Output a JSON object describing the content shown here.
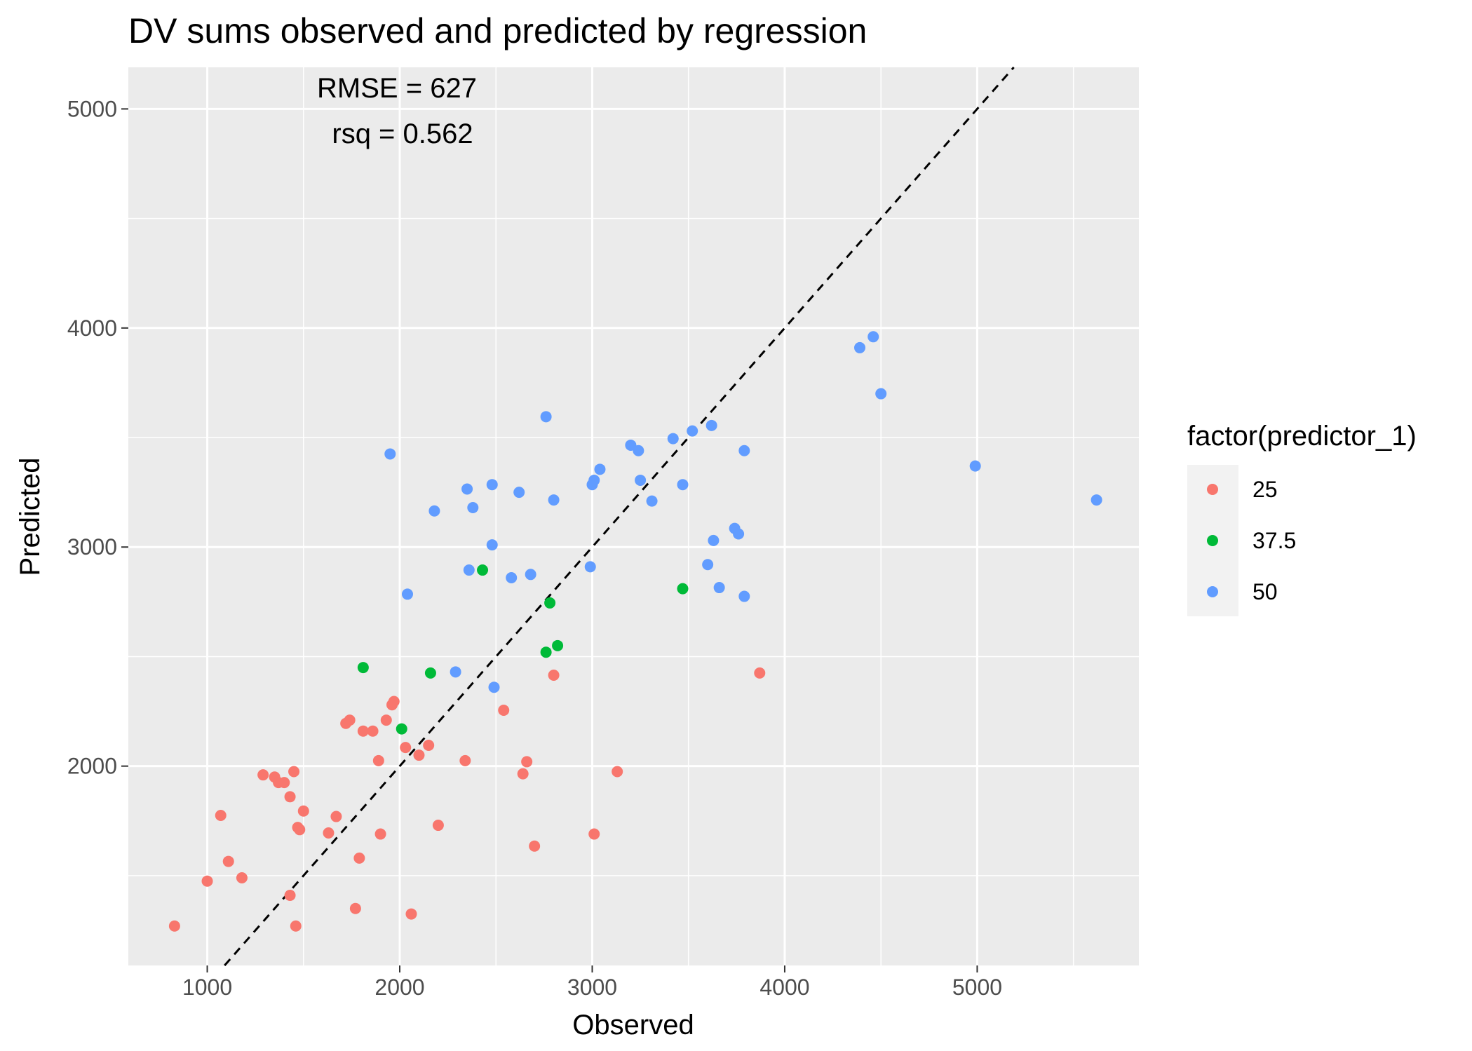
{
  "chart_data": {
    "type": "scatter",
    "title": "DV sums observed and predicted by regression",
    "xlabel": "Observed",
    "ylabel": "Predicted",
    "xlim": [
      590,
      5840
    ],
    "ylim": [
      1090,
      5190
    ],
    "x_ticks": [
      1000,
      2000,
      3000,
      4000,
      5000
    ],
    "y_ticks": [
      2000,
      3000,
      4000,
      5000
    ],
    "x_tick_labels": [
      "1000",
      "2000",
      "3000",
      "4000",
      "5000"
    ],
    "y_tick_labels": [
      "2000",
      "3000",
      "4000",
      "5000"
    ],
    "grid": true,
    "reference_line": {
      "style": "dashed",
      "slope": 1,
      "intercept": 0
    },
    "annotations": [
      "RMSE = 627",
      "rsq = 0.562"
    ],
    "legend": {
      "title": "factor(predictor_1)",
      "position": "right"
    },
    "series": [
      {
        "name": "25",
        "color": "#F8766D",
        "points": [
          [
            830,
            1270
          ],
          [
            1000,
            1475
          ],
          [
            1070,
            1775
          ],
          [
            1110,
            1565
          ],
          [
            1180,
            1490
          ],
          [
            1290,
            1960
          ],
          [
            1350,
            1950
          ],
          [
            1370,
            1925
          ],
          [
            1400,
            1925
          ],
          [
            1430,
            1860
          ],
          [
            1450,
            1975
          ],
          [
            1430,
            1410
          ],
          [
            1460,
            1270
          ],
          [
            1470,
            1720
          ],
          [
            1480,
            1710
          ],
          [
            1500,
            1795
          ],
          [
            1630,
            1695
          ],
          [
            1670,
            1770
          ],
          [
            1720,
            2195
          ],
          [
            1740,
            2210
          ],
          [
            1770,
            1350
          ],
          [
            1790,
            1580
          ],
          [
            1810,
            2160
          ],
          [
            1860,
            2160
          ],
          [
            1890,
            2025
          ],
          [
            1900,
            1690
          ],
          [
            1930,
            2210
          ],
          [
            1960,
            2280
          ],
          [
            1970,
            2295
          ],
          [
            2030,
            2085
          ],
          [
            2060,
            1325
          ],
          [
            2100,
            2050
          ],
          [
            2150,
            2095
          ],
          [
            2200,
            1730
          ],
          [
            2340,
            2025
          ],
          [
            2540,
            2255
          ],
          [
            2640,
            1965
          ],
          [
            2660,
            2020
          ],
          [
            2700,
            1635
          ],
          [
            2800,
            2415
          ],
          [
            3010,
            1690
          ],
          [
            3130,
            1975
          ],
          [
            3870,
            2425
          ]
        ]
      },
      {
        "name": "37.5",
        "color": "#00BA38",
        "points": [
          [
            1810,
            2450
          ],
          [
            2010,
            2170
          ],
          [
            2160,
            2425
          ],
          [
            2430,
            2895
          ],
          [
            2760,
            2520
          ],
          [
            2780,
            2745
          ],
          [
            2820,
            2550
          ],
          [
            3470,
            2810
          ]
        ]
      },
      {
        "name": "50",
        "color": "#619CFF",
        "points": [
          [
            1950,
            3425
          ],
          [
            2040,
            2785
          ],
          [
            2180,
            3165
          ],
          [
            2290,
            2430
          ],
          [
            2350,
            3265
          ],
          [
            2360,
            2895
          ],
          [
            2380,
            3180
          ],
          [
            2480,
            3285
          ],
          [
            2480,
            3010
          ],
          [
            2490,
            2360
          ],
          [
            2580,
            2860
          ],
          [
            2620,
            3250
          ],
          [
            2680,
            2875
          ],
          [
            2760,
            3595
          ],
          [
            2800,
            3215
          ],
          [
            2990,
            2910
          ],
          [
            3000,
            3285
          ],
          [
            3010,
            3305
          ],
          [
            3040,
            3355
          ],
          [
            3200,
            3465
          ],
          [
            3240,
            3440
          ],
          [
            3250,
            3305
          ],
          [
            3310,
            3210
          ],
          [
            3420,
            3495
          ],
          [
            3470,
            3285
          ],
          [
            3520,
            3530
          ],
          [
            3600,
            2920
          ],
          [
            3620,
            3555
          ],
          [
            3630,
            3030
          ],
          [
            3660,
            2815
          ],
          [
            3740,
            3085
          ],
          [
            3760,
            3060
          ],
          [
            3790,
            3440
          ],
          [
            3790,
            2775
          ],
          [
            4390,
            3910
          ],
          [
            4460,
            3960
          ],
          [
            4500,
            3700
          ],
          [
            4990,
            3370
          ],
          [
            5620,
            3215
          ]
        ]
      }
    ]
  }
}
